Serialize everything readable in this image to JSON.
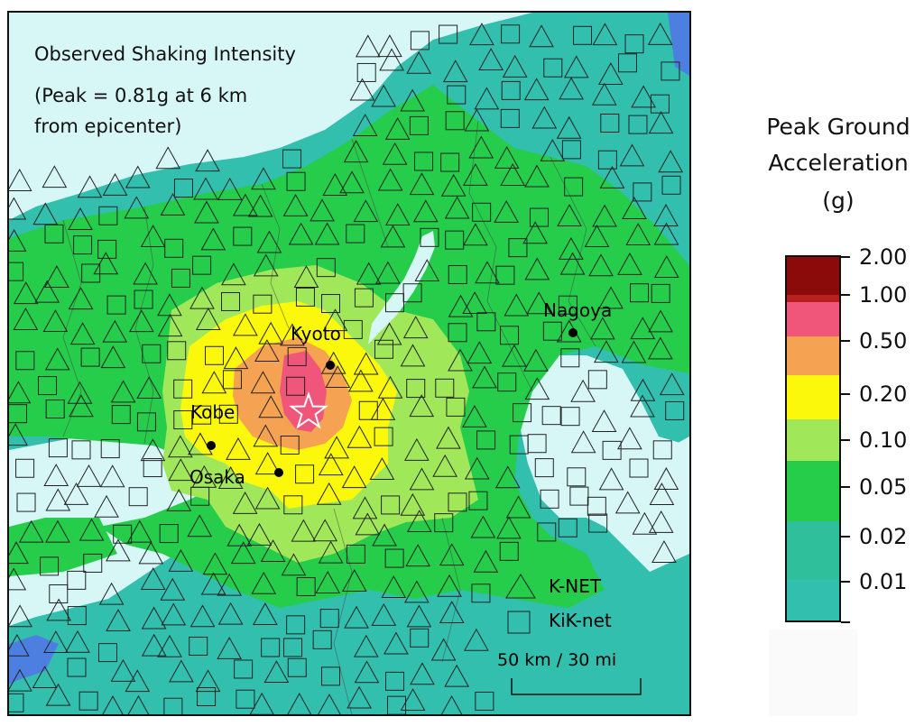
{
  "map": {
    "title_lines": [
      "Observed Shaking Intensity",
      "(Peak = 0.81g at 6 km",
      "from epicenter)"
    ],
    "cities": [
      "Kyoto",
      "Kobe",
      "Osaka",
      "Nagoya"
    ],
    "legend_items": [
      {
        "symbol": "triangle",
        "label": "K-NET"
      },
      {
        "symbol": "square",
        "label": "KiK-net"
      }
    ],
    "scale_bar": "50 km / 30 mi",
    "epicenter_symbol": "star"
  },
  "legend": {
    "title_lines": [
      "Peak Ground",
      "Acceleration",
      "(g)"
    ],
    "ticks": [
      "2.00",
      "1.00",
      "0.50",
      "0.20",
      "0.10",
      "0.05",
      "0.02",
      "0.01"
    ],
    "band_colors": [
      "#8b0a0a",
      "#b81f1f",
      "#f0557a",
      "#f5a252",
      "#fbf80c",
      "#a0e85a",
      "#25cd4b",
      "#2fbf9a",
      "#33bfae"
    ]
  },
  "colors": {
    "water": "#d7f6f6",
    "pga_001": "#33bfae",
    "pga_002": "#2fbf9a",
    "pga_005": "#25cd4b",
    "pga_010": "#a0e85a",
    "pga_020": "#fbf80c",
    "pga_050": "#f5a252",
    "pga_100": "#f0557a",
    "low_blue": "#4c7fe0"
  }
}
